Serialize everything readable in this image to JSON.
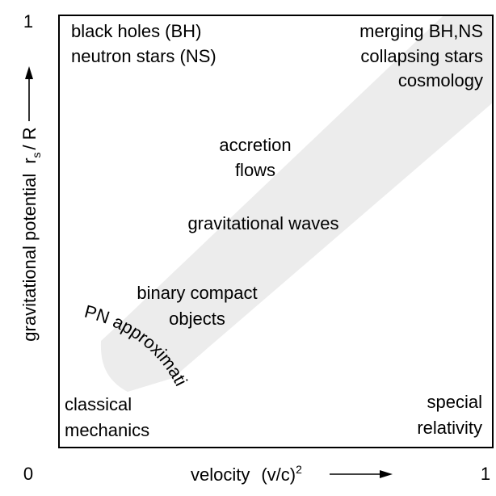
{
  "axes": {
    "x_label_prefix": "velocity",
    "x_label_formula": "(v/c)",
    "x_label_exponent": "2",
    "y_label_prefix": "gravitational potential",
    "y_label_r": "r",
    "y_label_subscript": "s",
    "y_label_suffix": "/ R",
    "origin_label": "0",
    "x_max_label": "1",
    "y_max_label": "1"
  },
  "regions": {
    "top_left": [
      "black holes (BH)",
      "neutron stars (NS)"
    ],
    "top_right": [
      "merging BH,NS",
      "collapsing stars",
      "cosmology"
    ],
    "bottom_left": [
      "classical",
      "mechanics"
    ],
    "bottom_right": [
      "special",
      "relativity"
    ]
  },
  "band_labels": {
    "accretion": [
      "accretion",
      "flows"
    ],
    "gravitational_waves": "gravitational waves",
    "binary": [
      "binary compact",
      "objects"
    ],
    "pn": "PN approximati"
  },
  "colors": {
    "band_fill": "#ececec",
    "frame": "#000000",
    "text": "#000000"
  }
}
